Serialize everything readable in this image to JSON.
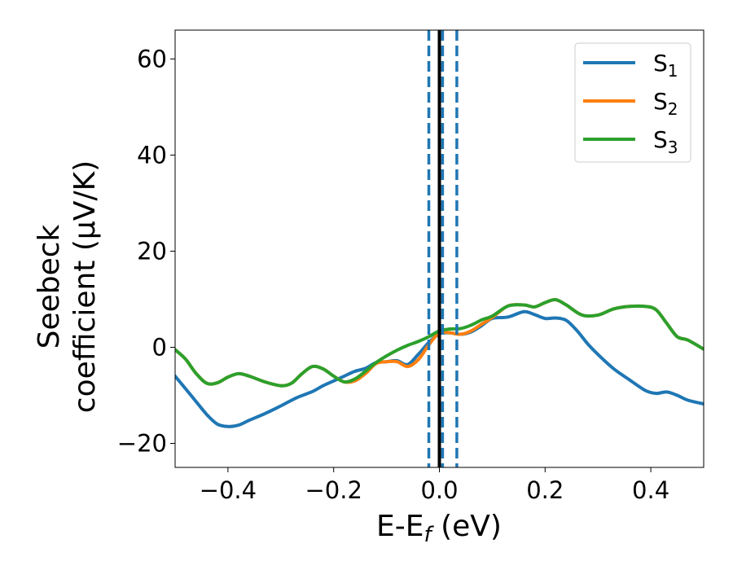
{
  "chart_data": {
    "type": "line",
    "xlabel": "E-E",
    "xlabel_sub": "f",
    "xlabel_unit": "(eV)",
    "ylabel_line1": "Seebeck",
    "ylabel_line2": "coefficient  (μV/K)",
    "xlim": [
      -0.5,
      0.5
    ],
    "ylim": [
      -25,
      66
    ],
    "x_ticks": [
      -0.4,
      -0.2,
      0.0,
      0.2,
      0.4
    ],
    "x_tick_labels": [
      "−0.4",
      "−0.2",
      "0.0",
      "0.2",
      "0.4"
    ],
    "y_ticks": [
      -20,
      0,
      20,
      40,
      60
    ],
    "y_tick_labels": [
      "−20",
      "0",
      "20",
      "40",
      "60"
    ],
    "grid": false,
    "legend_placement": "top-right",
    "series": [
      {
        "name": "S",
        "sub": "1",
        "color": "#1f77b4",
        "x": [
          -0.5,
          -0.47,
          -0.44,
          -0.42,
          -0.4,
          -0.38,
          -0.36,
          -0.33,
          -0.3,
          -0.27,
          -0.24,
          -0.22,
          -0.2,
          -0.18,
          -0.16,
          -0.14,
          -0.12,
          -0.1,
          -0.08,
          -0.06,
          -0.04,
          -0.02,
          0.0,
          0.02,
          0.04,
          0.06,
          0.08,
          0.1,
          0.13,
          0.16,
          0.18,
          0.2,
          0.22,
          0.24,
          0.26,
          0.28,
          0.3,
          0.33,
          0.36,
          0.39,
          0.41,
          0.43,
          0.45,
          0.47,
          0.5
        ],
        "values": [
          -6,
          -10,
          -14,
          -16,
          -16.5,
          -16.2,
          -15.2,
          -13.8,
          -12.2,
          -10.5,
          -9.2,
          -8,
          -7,
          -6,
          -5,
          -4.4,
          -3.2,
          -3,
          -2.8,
          -3.6,
          -1.5,
          1,
          2.8,
          3,
          2.7,
          3.2,
          4.5,
          6,
          6.3,
          7.4,
          6.8,
          6,
          6.1,
          5.6,
          3.5,
          0.8,
          -1.5,
          -4.5,
          -6.8,
          -9,
          -9.6,
          -9.3,
          -10,
          -11,
          -11.8
        ]
      },
      {
        "name": "S",
        "sub": "2",
        "color": "#ff7f0e",
        "x": [
          -0.5,
          -0.48,
          -0.46,
          -0.44,
          -0.42,
          -0.4,
          -0.38,
          -0.36,
          -0.33,
          -0.3,
          -0.28,
          -0.26,
          -0.24,
          -0.22,
          -0.2,
          -0.18,
          -0.16,
          -0.14,
          -0.12,
          -0.1,
          -0.08,
          -0.06,
          -0.04,
          -0.02,
          0.0,
          0.02,
          0.04,
          0.06,
          0.08,
          0.1,
          0.13,
          0.16,
          0.18,
          0.2,
          0.22,
          0.24,
          0.27,
          0.3,
          0.33,
          0.36,
          0.39,
          0.41,
          0.43,
          0.45,
          0.47,
          0.5
        ],
        "values": [
          -0.5,
          -2.5,
          -5.5,
          -7.5,
          -7.4,
          -6.2,
          -5.5,
          -6,
          -7.2,
          -8,
          -7.5,
          -5.5,
          -4,
          -4.5,
          -6,
          -7.2,
          -7,
          -5.5,
          -3.4,
          -3,
          -3,
          -4,
          -2.6,
          0.5,
          3,
          3,
          2.7,
          3.4,
          4.8,
          6.2,
          8.6,
          8.8,
          8.4,
          9.3,
          9.9,
          8.8,
          6.7,
          6.7,
          8,
          8.5,
          8.5,
          7.8,
          5,
          2.2,
          1.5,
          -0.4
        ]
      },
      {
        "name": "S",
        "sub": "3",
        "color": "#2ca02c",
        "x": [
          -0.5,
          -0.48,
          -0.46,
          -0.44,
          -0.42,
          -0.4,
          -0.38,
          -0.36,
          -0.33,
          -0.3,
          -0.28,
          -0.26,
          -0.24,
          -0.22,
          -0.2,
          -0.18,
          -0.16,
          -0.14,
          -0.12,
          -0.1,
          -0.08,
          -0.06,
          -0.04,
          -0.02,
          0.0,
          0.02,
          0.04,
          0.06,
          0.08,
          0.1,
          0.13,
          0.16,
          0.18,
          0.2,
          0.22,
          0.24,
          0.27,
          0.3,
          0.33,
          0.36,
          0.39,
          0.41,
          0.43,
          0.45,
          0.47,
          0.5
        ],
        "values": [
          -0.5,
          -2.5,
          -5.5,
          -7.5,
          -7.4,
          -6.2,
          -5.5,
          -6,
          -7.2,
          -8,
          -7.5,
          -5.5,
          -4,
          -4.5,
          -6,
          -7.2,
          -6.6,
          -5,
          -3.2,
          -1.8,
          -0.6,
          0.4,
          1.2,
          2.2,
          3.4,
          3.8,
          3.9,
          4.6,
          5.7,
          6.5,
          8.6,
          8.8,
          8.4,
          9.3,
          9.9,
          8.8,
          6.7,
          6.7,
          8,
          8.5,
          8.5,
          7.8,
          5,
          2.2,
          1.5,
          -0.4
        ]
      }
    ],
    "vertical_lines": [
      {
        "x": 0.0,
        "style": "solid",
        "color": "#000000"
      },
      {
        "x": -0.02,
        "style": "dashed",
        "color": "#1f77b4"
      },
      {
        "x": 0.006,
        "style": "dashed",
        "color": "#1f77b4"
      },
      {
        "x": 0.033,
        "style": "dashed",
        "color": "#1f77b4"
      }
    ]
  }
}
